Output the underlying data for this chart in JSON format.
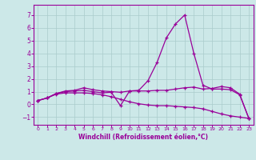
{
  "background_color": "#cce8e8",
  "grid_color": "#aacccc",
  "line_color": "#990099",
  "xlabel": "Windchill (Refroidissement éolien,°C)",
  "xlim": [
    -0.5,
    23.5
  ],
  "ylim": [
    -1.6,
    7.8
  ],
  "yticks": [
    -1,
    0,
    1,
    2,
    3,
    4,
    5,
    6,
    7
  ],
  "xticks": [
    0,
    1,
    2,
    3,
    4,
    5,
    6,
    7,
    8,
    9,
    10,
    11,
    12,
    13,
    14,
    15,
    16,
    17,
    18,
    19,
    20,
    21,
    22,
    23
  ],
  "series1_x": [
    0,
    1,
    2,
    3,
    4,
    5,
    6,
    7,
    8,
    9,
    10,
    11,
    12,
    13,
    14,
    15,
    16,
    17,
    18,
    19,
    20,
    21,
    22,
    23
  ],
  "series1_y": [
    0.3,
    0.5,
    0.85,
    1.05,
    1.1,
    1.3,
    1.15,
    1.05,
    1.0,
    0.95,
    1.05,
    1.05,
    1.05,
    1.1,
    1.1,
    1.2,
    1.3,
    1.35,
    1.2,
    1.25,
    1.4,
    1.3,
    0.8,
    -1.1
  ],
  "series2_x": [
    0,
    1,
    2,
    3,
    4,
    5,
    6,
    7,
    8,
    9,
    10,
    11,
    12,
    13,
    14,
    15,
    16,
    17,
    18,
    19,
    20,
    21,
    22,
    23
  ],
  "series2_y": [
    0.3,
    0.5,
    0.85,
    1.0,
    1.05,
    1.1,
    1.0,
    0.9,
    0.95,
    -0.1,
    1.05,
    1.1,
    1.85,
    3.3,
    5.2,
    6.3,
    7.0,
    4.0,
    1.5,
    1.2,
    1.2,
    1.15,
    0.75,
    -1.1
  ],
  "series3_x": [
    0,
    1,
    2,
    3,
    4,
    5,
    6,
    7,
    8,
    9,
    10,
    11,
    12,
    13,
    14,
    15,
    16,
    17,
    18,
    19,
    20,
    21,
    22,
    23
  ],
  "series3_y": [
    0.3,
    0.5,
    0.8,
    0.9,
    0.9,
    0.9,
    0.85,
    0.75,
    0.6,
    0.4,
    0.2,
    0.05,
    -0.05,
    -0.1,
    -0.1,
    -0.15,
    -0.2,
    -0.25,
    -0.35,
    -0.55,
    -0.75,
    -0.9,
    -1.0,
    -1.1
  ]
}
